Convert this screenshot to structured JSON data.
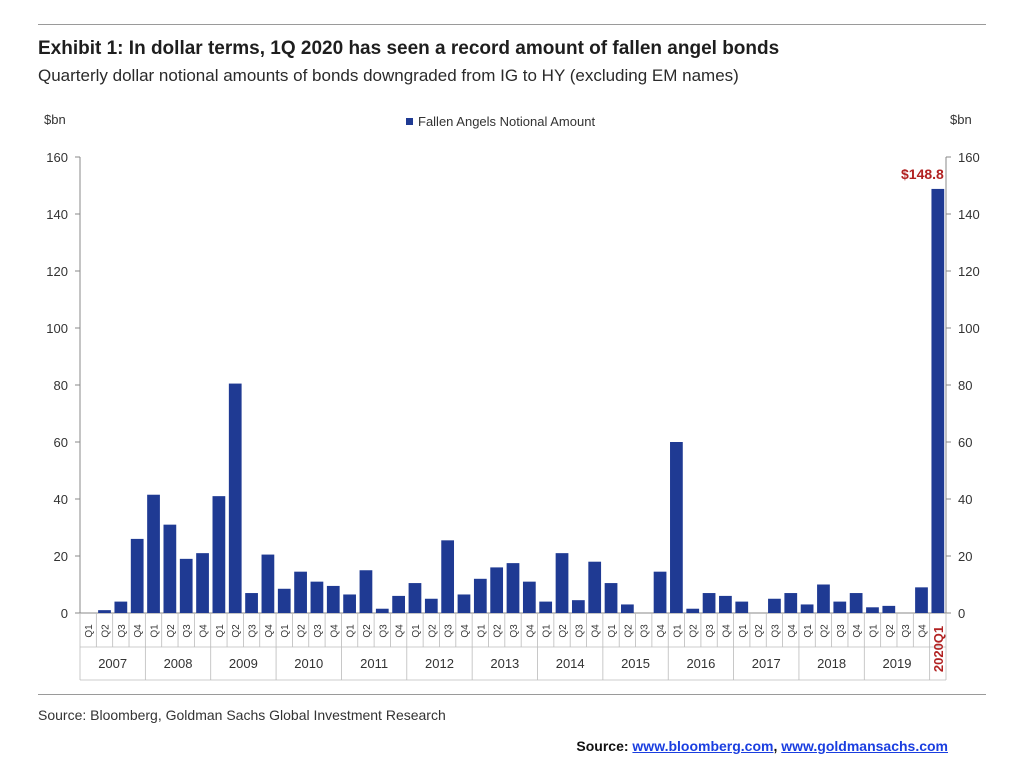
{
  "title": "Exhibit 1: In dollar terms, 1Q 2020 has seen a record amount of fallen angel bonds",
  "subtitle": "Quarterly dollar notional amounts of bonds downgraded from IG to HY (excluding EM names)",
  "source_note": "Source: Bloomberg, Goldman Sachs Global Investment Research",
  "footer": {
    "label": "Source: ",
    "link1": "www.bloomberg.com",
    "separator": ", ",
    "link2": "www.goldmansachs.com"
  },
  "colors": {
    "bar": "#1f3a93",
    "highlight_label": "#b22222",
    "axis": "#888888"
  },
  "chart_data": {
    "type": "bar",
    "left_axis_unit": "$bn",
    "right_axis_unit": "$bn",
    "legend": "Fallen Angels Notional Amount",
    "legend_position": "top-center",
    "ylim": [
      0,
      160
    ],
    "yticks": [
      0,
      20,
      40,
      60,
      80,
      100,
      120,
      140,
      160
    ],
    "grid": false,
    "years": [
      "2007",
      "2008",
      "2009",
      "2010",
      "2011",
      "2012",
      "2013",
      "2014",
      "2015",
      "2016",
      "2017",
      "2018",
      "2019"
    ],
    "quarter_labels": [
      "Q1",
      "Q2",
      "Q3",
      "Q4"
    ],
    "final_category": "2020Q1",
    "values": [
      0,
      1,
      4,
      26,
      41.5,
      31,
      19,
      21,
      41,
      80.5,
      7,
      20.5,
      8.5,
      14.5,
      11,
      9.5,
      6.5,
      15,
      1.5,
      6,
      10.5,
      5,
      25.5,
      6.5,
      12,
      16,
      17.5,
      11,
      4,
      21,
      4.5,
      18,
      10.5,
      3,
      0,
      14.5,
      60,
      1.5,
      7,
      6,
      4,
      0,
      5,
      7,
      3,
      10,
      4,
      7,
      2,
      2.5,
      0,
      9,
      148.8
    ],
    "annotation": "$148.8"
  }
}
